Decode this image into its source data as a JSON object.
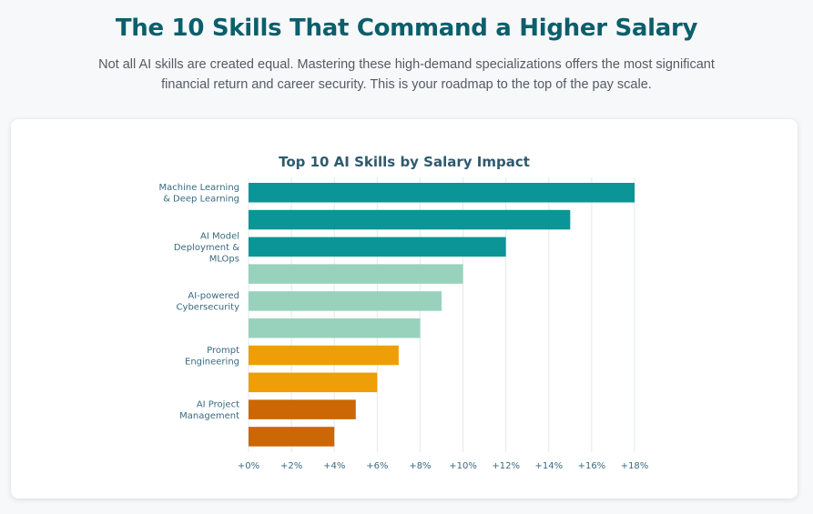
{
  "header": {
    "title": "The 10 Skills That Command a Higher Salary",
    "subtitle": "Not all AI skills are created equal. Mastering these high-demand specializations offers the most significant financial return and career security. This is your roadmap to the top of the pay scale."
  },
  "colors": {
    "title": "#0b5f6b",
    "bar_teal": "#0b9596",
    "bar_mint": "#98d2bc",
    "bar_orange": "#ee9e06",
    "bar_rust": "#cb6704",
    "grid": "#e4e8ec",
    "axis_text": "#3a6a80"
  },
  "chart_data": {
    "type": "bar",
    "orientation": "horizontal",
    "title": "Top 10 AI Skills by Salary Impact",
    "xlim": [
      0,
      18
    ],
    "x_ticks": [
      0,
      2,
      4,
      6,
      8,
      10,
      12,
      14,
      16,
      18
    ],
    "x_tick_labels": [
      "+0%",
      "+2%",
      "+4%",
      "+6%",
      "+8%",
      "+10%",
      "+12%",
      "+14%",
      "+16%",
      "+18%"
    ],
    "grid": "vertical",
    "categories": [
      "Machine Learning & Deep Learning",
      "",
      "AI Model Deployment & MLOps",
      "",
      "AI-powered Cybersecurity",
      "",
      "Prompt Engineering",
      "",
      "AI Project Management",
      ""
    ],
    "label_lines": [
      [
        "Machine Learning",
        "& Deep Learning"
      ],
      [],
      [
        "AI Model",
        "Deployment &",
        "MLOps"
      ],
      [],
      [
        "AI-powered",
        "Cybersecurity"
      ],
      [],
      [
        "Prompt",
        "Engineering"
      ],
      [],
      [
        "AI Project",
        "Management"
      ],
      []
    ],
    "values": [
      18,
      15,
      12,
      10,
      9,
      8,
      7,
      6,
      5,
      4
    ],
    "bar_colors": [
      "#0b9596",
      "#0b9596",
      "#0b9596",
      "#98d2bc",
      "#98d2bc",
      "#98d2bc",
      "#ee9e06",
      "#ee9e06",
      "#cb6704",
      "#cb6704"
    ]
  }
}
